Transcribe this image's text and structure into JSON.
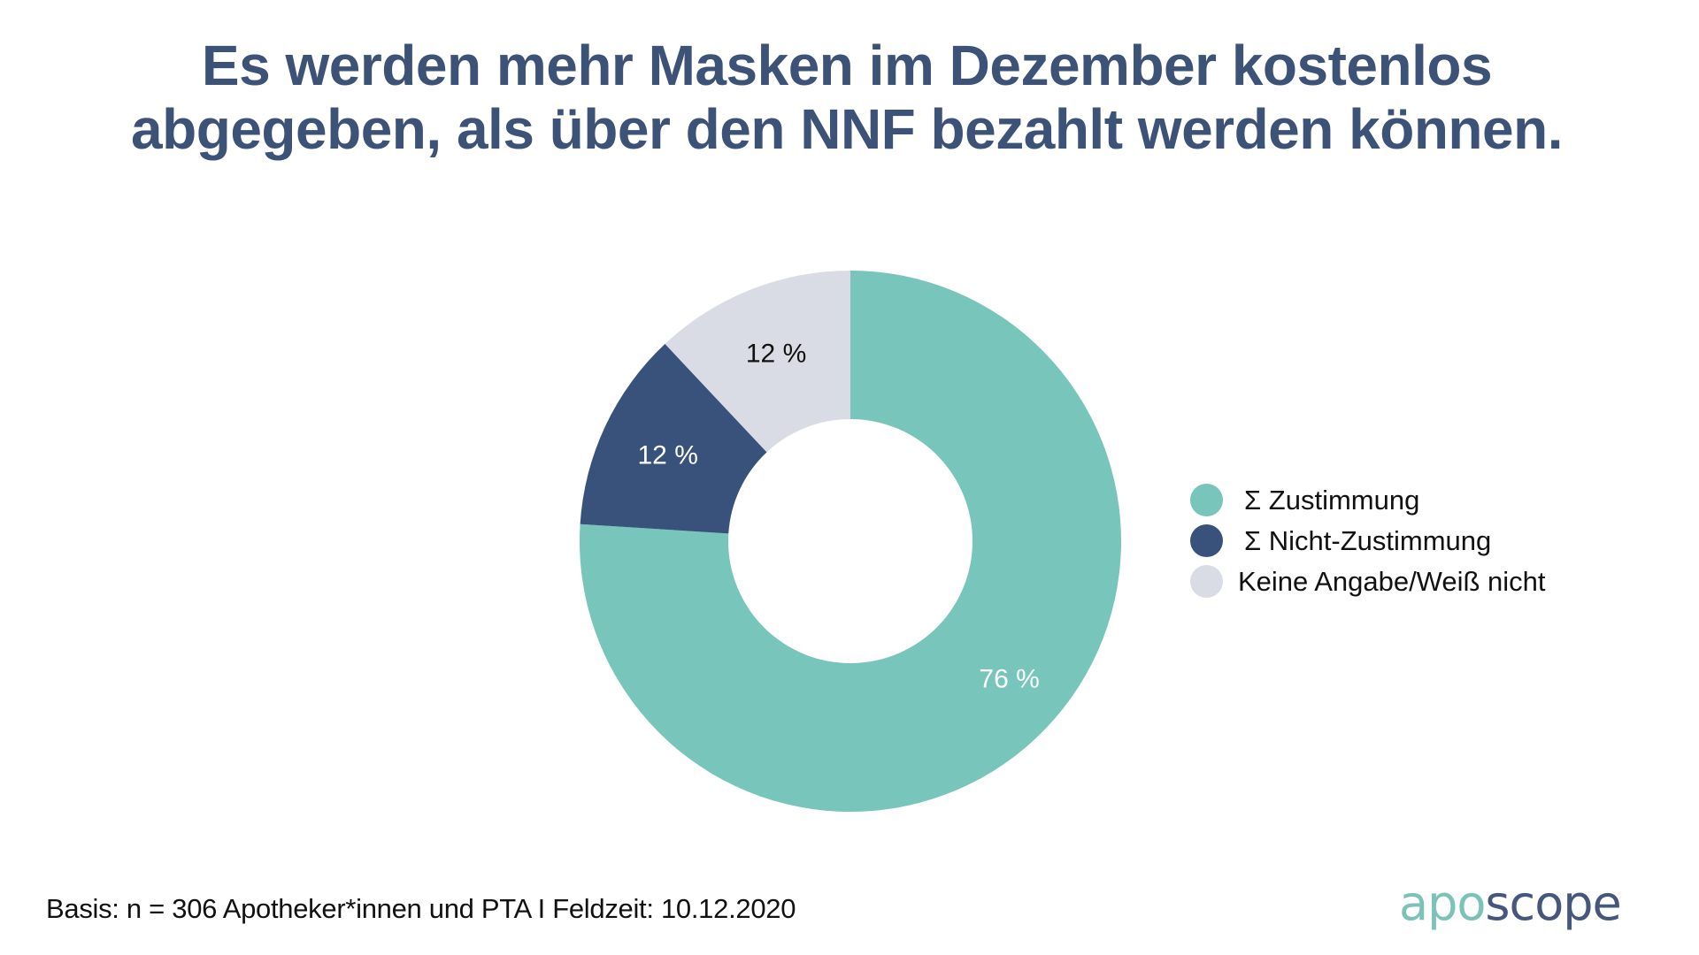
{
  "title": {
    "line1": "Es werden mehr Masken im Dezember kostenlos",
    "line2": "abgegeben, als über den NNF bezahlt werden können."
  },
  "chart_data": {
    "type": "pie",
    "variant": "donut",
    "title": "Es werden mehr Masken im Dezember kostenlos abgegeben, als über den NNF bezahlt werden können.",
    "categories": [
      "Σ Zustimmung",
      "Σ Nicht-Zustimmung",
      "Keine Angabe/Weiß nicht"
    ],
    "values": [
      76,
      12,
      12
    ],
    "unit": "%",
    "data_labels": [
      "76 %",
      "12 %",
      "12 %"
    ],
    "colors": [
      "#78c5bb",
      "#38527b",
      "#d9dce4"
    ],
    "label_colors": [
      "#ffffff",
      "#ffffff",
      "#111111"
    ],
    "start": "12 o'clock",
    "direction": "clockwise",
    "legend_position": "right"
  },
  "legend": {
    "items": [
      {
        "label": "Σ Zustimmung",
        "color": "#78c5bb"
      },
      {
        "label": "Σ Nicht-Zustimmung",
        "color": "#38527b"
      },
      {
        "label": "Keine Angabe/Weiß nicht",
        "color": "#d9dce4"
      }
    ]
  },
  "footer": {
    "note": "Basis: n = 306 Apotheker*innen und PTA I Feldzeit: 10.12.2020"
  },
  "logo": {
    "part1": "apo",
    "part2": "scope",
    "color1": "#7cc2b8",
    "color2": "#45577c"
  },
  "colors": {
    "title": "#3d5277",
    "text": "#111111",
    "background": "#ffffff"
  }
}
